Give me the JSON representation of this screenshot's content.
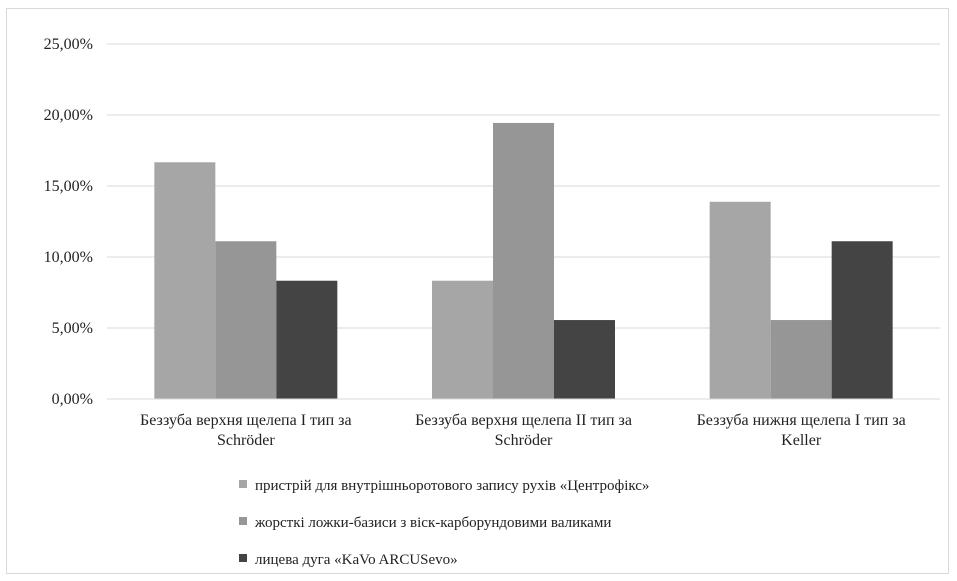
{
  "chart_data": {
    "type": "bar",
    "title": "",
    "xlabel": "",
    "ylabel": "",
    "ylim": [
      0,
      0.25
    ],
    "y_tick_step": 0.05,
    "y_ticks": [
      "0,00%",
      "5,00%",
      "10,00%",
      "15,00%",
      "20,00%",
      "25,00%"
    ],
    "grid": true,
    "legend_position": "bottom",
    "categories": [
      [
        "Беззуба верхня щелепа I тип за",
        "Schröder"
      ],
      [
        "Беззуба верхня щелепа II тип за",
        "Schröder"
      ],
      [
        "Беззуба нижня щелепа I тип за",
        "Keller"
      ]
    ],
    "series": [
      {
        "name": "пристрій  для внутрішньоротового  запису рухів «Центрофікс»",
        "values": [
          0.1667,
          0.0833,
          0.1389
        ],
        "color": "#a6a6a6"
      },
      {
        "name": "жорсткі ложки-базиси з віск-карборундовими валиками",
        "values": [
          0.1111,
          0.1944,
          0.0556
        ],
        "color": "#969696"
      },
      {
        "name": "лицева дуга «KaVo ARCUSevo»",
        "values": [
          0.0833,
          0.0556,
          0.1111
        ],
        "color": "#444444"
      }
    ]
  }
}
